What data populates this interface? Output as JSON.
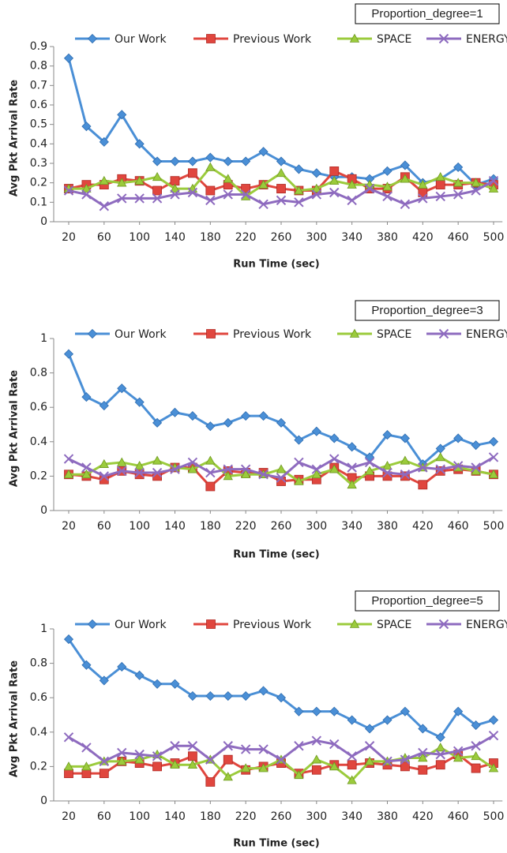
{
  "chart_data": [
    {
      "type": "line",
      "title": "Proportion_degree=1",
      "x_label": "Run Time (sec)",
      "y_label": "Avg Pkt Arrival Rate",
      "x": [
        20,
        40,
        60,
        80,
        100,
        120,
        140,
        160,
        180,
        200,
        220,
        240,
        260,
        280,
        300,
        320,
        340,
        360,
        380,
        400,
        420,
        440,
        460,
        480,
        500
      ],
      "xlim": [
        10,
        510
      ],
      "xticks": [
        20,
        60,
        100,
        140,
        180,
        220,
        260,
        300,
        340,
        380,
        420,
        460,
        500
      ],
      "ylim": [
        0,
        0.9
      ],
      "yticks": [
        0,
        0.1,
        0.2,
        0.3,
        0.4,
        0.5,
        0.6,
        0.7,
        0.8,
        0.9
      ],
      "series": [
        {
          "name": "Our Work",
          "color": "#4a8fd6",
          "marker": "diamond",
          "values": [
            0.84,
            0.49,
            0.41,
            0.55,
            0.4,
            0.31,
            0.31,
            0.31,
            0.33,
            0.31,
            0.31,
            0.36,
            0.31,
            0.27,
            0.25,
            0.23,
            0.23,
            0.22,
            0.26,
            0.29,
            0.2,
            0.22,
            0.28,
            0.19,
            0.22
          ]
        },
        {
          "name": "Previous Work",
          "color": "#e0463e",
          "marker": "square",
          "values": [
            0.17,
            0.19,
            0.19,
            0.22,
            0.21,
            0.16,
            0.21,
            0.25,
            0.16,
            0.19,
            0.17,
            0.19,
            0.17,
            0.16,
            0.16,
            0.26,
            0.22,
            0.17,
            0.17,
            0.23,
            0.15,
            0.19,
            0.19,
            0.2,
            0.19
          ]
        },
        {
          "name": "SPACE",
          "color": "#9bcb3c",
          "marker": "triangle",
          "values": [
            0.17,
            0.17,
            0.21,
            0.2,
            0.21,
            0.23,
            0.17,
            0.17,
            0.28,
            0.22,
            0.13,
            0.19,
            0.25,
            0.16,
            0.17,
            0.21,
            0.19,
            0.19,
            0.18,
            0.22,
            0.19,
            0.23,
            0.2,
            0.2,
            0.17
          ]
        },
        {
          "name": "ENERGY",
          "color": "#8e6bbf",
          "marker": "x",
          "values": [
            0.16,
            0.14,
            0.08,
            0.12,
            0.12,
            0.12,
            0.14,
            0.15,
            0.11,
            0.14,
            0.14,
            0.09,
            0.11,
            0.1,
            0.14,
            0.15,
            0.11,
            0.17,
            0.13,
            0.09,
            0.12,
            0.13,
            0.14,
            0.16,
            0.21
          ]
        }
      ]
    },
    {
      "type": "line",
      "title": "Proportion_degree=3",
      "x_label": "Run Time (sec)",
      "y_label": "Avg Pkt Arrival Rate",
      "x": [
        20,
        40,
        60,
        80,
        100,
        120,
        140,
        160,
        180,
        200,
        220,
        240,
        260,
        280,
        300,
        320,
        340,
        360,
        380,
        400,
        420,
        440,
        460,
        480,
        500
      ],
      "xlim": [
        10,
        510
      ],
      "xticks": [
        20,
        60,
        100,
        140,
        180,
        220,
        260,
        300,
        340,
        380,
        420,
        460,
        500
      ],
      "ylim": [
        0,
        1
      ],
      "yticks": [
        0,
        0.2,
        0.4,
        0.6,
        0.8,
        1
      ],
      "series": [
        {
          "name": "Our Work",
          "color": "#4a8fd6",
          "marker": "diamond",
          "values": [
            0.91,
            0.66,
            0.61,
            0.71,
            0.63,
            0.51,
            0.57,
            0.55,
            0.49,
            0.51,
            0.55,
            0.55,
            0.51,
            0.41,
            0.46,
            0.42,
            0.37,
            0.31,
            0.44,
            0.42,
            0.27,
            0.36,
            0.42,
            0.38,
            0.4
          ]
        },
        {
          "name": "Previous Work",
          "color": "#e0463e",
          "marker": "square",
          "values": [
            0.21,
            0.2,
            0.18,
            0.23,
            0.21,
            0.2,
            0.25,
            0.25,
            0.14,
            0.23,
            0.22,
            0.22,
            0.17,
            0.18,
            0.18,
            0.25,
            0.19,
            0.2,
            0.2,
            0.2,
            0.15,
            0.23,
            0.24,
            0.23,
            0.21
          ]
        },
        {
          "name": "SPACE",
          "color": "#9bcb3c",
          "marker": "triangle",
          "values": [
            0.21,
            0.21,
            0.27,
            0.28,
            0.26,
            0.29,
            0.25,
            0.24,
            0.29,
            0.2,
            0.21,
            0.21,
            0.24,
            0.17,
            0.21,
            0.24,
            0.15,
            0.23,
            0.26,
            0.29,
            0.25,
            0.31,
            0.25,
            0.23,
            0.21
          ]
        },
        {
          "name": "ENERGY",
          "color": "#8e6bbf",
          "marker": "x",
          "values": [
            0.3,
            0.25,
            0.2,
            0.23,
            0.22,
            0.22,
            0.24,
            0.28,
            0.22,
            0.24,
            0.24,
            0.21,
            0.19,
            0.28,
            0.24,
            0.3,
            0.25,
            0.28,
            0.22,
            0.21,
            0.25,
            0.24,
            0.26,
            0.25,
            0.31
          ]
        }
      ]
    },
    {
      "type": "line",
      "title": "Proportion_degree=5",
      "x_label": "Run Time (sec)",
      "y_label": "Avg Pkt Arrival Rate",
      "x": [
        20,
        40,
        60,
        80,
        100,
        120,
        140,
        160,
        180,
        200,
        220,
        240,
        260,
        280,
        300,
        320,
        340,
        360,
        380,
        400,
        420,
        440,
        460,
        480,
        500
      ],
      "xlim": [
        10,
        510
      ],
      "xticks": [
        20,
        60,
        100,
        140,
        180,
        220,
        260,
        300,
        340,
        380,
        420,
        460,
        500
      ],
      "ylim": [
        0,
        1
      ],
      "yticks": [
        0,
        0.2,
        0.4,
        0.6,
        0.8,
        1
      ],
      "series": [
        {
          "name": "Our Work",
          "color": "#4a8fd6",
          "marker": "diamond",
          "values": [
            0.94,
            0.79,
            0.7,
            0.78,
            0.73,
            0.68,
            0.68,
            0.61,
            0.61,
            0.61,
            0.61,
            0.64,
            0.6,
            0.52,
            0.52,
            0.52,
            0.47,
            0.42,
            0.47,
            0.52,
            0.42,
            0.37,
            0.52,
            0.44,
            0.47
          ]
        },
        {
          "name": "Previous Work",
          "color": "#e0463e",
          "marker": "square",
          "values": [
            0.16,
            0.16,
            0.16,
            0.23,
            0.22,
            0.2,
            0.22,
            0.26,
            0.11,
            0.24,
            0.18,
            0.2,
            0.22,
            0.16,
            0.18,
            0.21,
            0.21,
            0.22,
            0.21,
            0.2,
            0.18,
            0.21,
            0.27,
            0.19,
            0.22
          ]
        },
        {
          "name": "SPACE",
          "color": "#9bcb3c",
          "marker": "triangle",
          "values": [
            0.2,
            0.2,
            0.23,
            0.23,
            0.24,
            0.27,
            0.21,
            0.21,
            0.24,
            0.14,
            0.19,
            0.19,
            0.24,
            0.15,
            0.24,
            0.2,
            0.12,
            0.23,
            0.23,
            0.25,
            0.25,
            0.31,
            0.25,
            0.26,
            0.19
          ]
        },
        {
          "name": "ENERGY",
          "color": "#8e6bbf",
          "marker": "x",
          "values": [
            0.37,
            0.31,
            0.23,
            0.28,
            0.27,
            0.26,
            0.32,
            0.32,
            0.24,
            0.32,
            0.3,
            0.3,
            0.24,
            0.32,
            0.35,
            0.33,
            0.26,
            0.32,
            0.23,
            0.24,
            0.28,
            0.27,
            0.29,
            0.32,
            0.38
          ]
        }
      ]
    }
  ]
}
